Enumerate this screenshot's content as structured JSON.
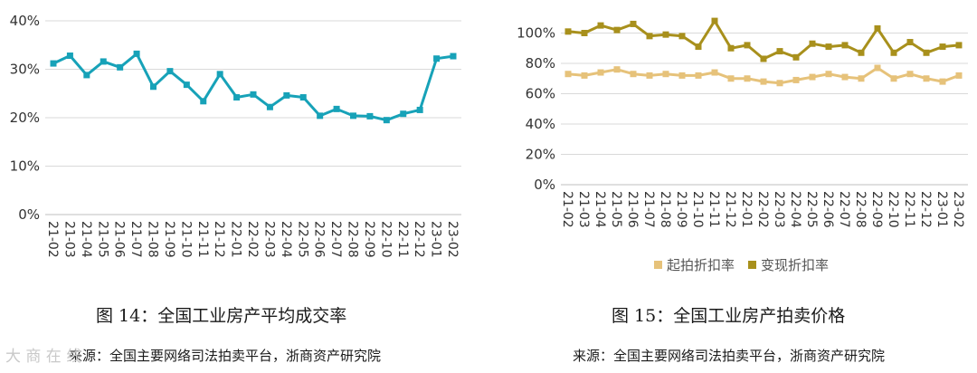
{
  "chart_data": [
    {
      "type": "line",
      "title": "",
      "xlabel": "",
      "ylabel": "",
      "categories": [
        "21-02",
        "21-03",
        "21-04",
        "21-05",
        "21-06",
        "21-07",
        "21-08",
        "21-09",
        "21-10",
        "21-11",
        "21-12",
        "22-01",
        "22-02",
        "22-03",
        "22-04",
        "22-05",
        "22-06",
        "22-07",
        "22-08",
        "22-09",
        "22-10",
        "22-11",
        "22-12",
        "23-01",
        "23-02"
      ],
      "series": [
        {
          "name": "",
          "color": "#17a2b8",
          "values": [
            31.2,
            32.8,
            28.8,
            31.6,
            30.4,
            33.2,
            26.4,
            29.6,
            26.8,
            23.4,
            29.0,
            24.2,
            24.8,
            22.2,
            24.6,
            24.2,
            20.4,
            21.8,
            20.4,
            20.3,
            19.5,
            20.8,
            21.6,
            32.2,
            32.7
          ]
        }
      ],
      "y_ticks": [
        "0%",
        "10%",
        "20%",
        "30%",
        "40%"
      ],
      "ylim": [
        0,
        40
      ],
      "grid": true,
      "legend": "none"
    },
    {
      "type": "line",
      "title": "",
      "xlabel": "",
      "ylabel": "",
      "categories": [
        "21-02",
        "21-03",
        "21-04",
        "21-05",
        "21-06",
        "21-07",
        "21-08",
        "21-09",
        "21-10",
        "21-11",
        "21-12",
        "22-01",
        "22-02",
        "22-03",
        "22-04",
        "22-05",
        "22-06",
        "22-07",
        "22-08",
        "22-09",
        "22-10",
        "22-11",
        "22-12",
        "23-01",
        "23-02"
      ],
      "series": [
        {
          "name": "起拍折扣率",
          "color": "#e6c27a",
          "values": [
            73,
            72,
            74,
            76,
            73,
            72,
            73,
            72,
            72,
            74,
            70,
            70,
            68,
            67,
            69,
            71,
            73,
            71,
            70,
            77,
            70,
            73,
            70,
            68,
            72
          ]
        },
        {
          "name": "变现折扣率",
          "color": "#a8901c",
          "values": [
            101,
            100,
            105,
            102,
            106,
            98,
            99,
            98,
            91,
            108,
            90,
            92,
            83,
            88,
            84,
            93,
            91,
            92,
            87,
            103,
            87,
            94,
            87,
            91,
            92
          ]
        }
      ],
      "y_ticks": [
        "0%",
        "20%",
        "40%",
        "60%",
        "80%",
        "100%"
      ],
      "ylim": [
        0,
        120
      ],
      "grid": true,
      "legend": "bottom"
    }
  ],
  "captions": {
    "left": "图 14：全国工业房产平均成交率",
    "right": "图 15：全国工业房产拍卖价格"
  },
  "sources": {
    "left": "来源：全国主要网络司法拍卖平台，浙商资产研究院",
    "right": "来源：全国主要网络司法拍卖平台，浙商资产研究院"
  },
  "watermark": "大 商 在 线"
}
